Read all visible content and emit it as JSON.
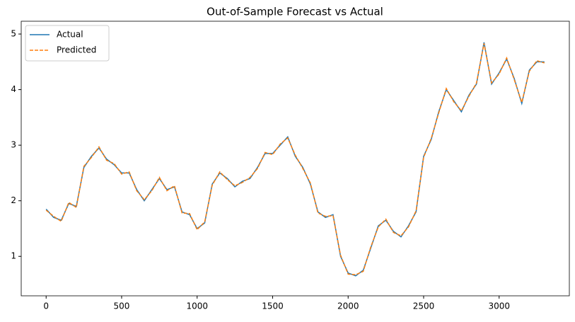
{
  "chart_data": {
    "type": "line",
    "title": "Out-of-Sample Forecast vs Actual",
    "x": [
      0,
      50,
      100,
      150,
      200,
      250,
      300,
      350,
      400,
      450,
      500,
      550,
      600,
      650,
      700,
      750,
      800,
      850,
      900,
      950,
      1000,
      1050,
      1100,
      1150,
      1200,
      1250,
      1300,
      1350,
      1400,
      1450,
      1500,
      1550,
      1600,
      1650,
      1700,
      1750,
      1800,
      1850,
      1900,
      1950,
      2000,
      2050,
      2100,
      2150,
      2200,
      2250,
      2300,
      2350,
      2400,
      2450,
      2500,
      2550,
      2600,
      2650,
      2700,
      2750,
      2800,
      2850,
      2900,
      2950,
      3000,
      3050,
      3100,
      3150,
      3200,
      3250,
      3300
    ],
    "series": [
      {
        "name": "Actual",
        "color": "#1f77b4",
        "dashed": false,
        "values": [
          1.85,
          1.7,
          1.65,
          1.95,
          1.9,
          2.6,
          2.8,
          2.95,
          2.75,
          2.65,
          2.5,
          2.5,
          2.2,
          2.0,
          2.2,
          2.4,
          2.2,
          2.25,
          1.8,
          1.75,
          1.5,
          1.6,
          2.3,
          2.5,
          2.4,
          2.25,
          2.35,
          2.4,
          2.6,
          2.85,
          2.85,
          3.0,
          3.15,
          2.8,
          2.6,
          2.3,
          1.8,
          1.7,
          1.75,
          1.0,
          0.7,
          0.65,
          0.75,
          1.15,
          1.55,
          1.65,
          1.45,
          1.35,
          1.55,
          1.8,
          2.8,
          3.1,
          3.6,
          4.0,
          3.8,
          3.6,
          3.9,
          4.1,
          4.85,
          4.1,
          4.3,
          4.55,
          4.2,
          3.75,
          4.35,
          4.5,
          4.5
        ]
      },
      {
        "name": "Predicted",
        "color": "#ff7f0e",
        "dashed": true,
        "values": [
          1.83,
          1.72,
          1.63,
          1.97,
          1.88,
          2.62,
          2.78,
          2.97,
          2.73,
          2.67,
          2.48,
          2.52,
          2.18,
          2.02,
          2.18,
          2.42,
          2.18,
          2.27,
          1.78,
          1.77,
          1.48,
          1.62,
          2.28,
          2.52,
          2.38,
          2.27,
          2.33,
          2.42,
          2.58,
          2.87,
          2.83,
          3.02,
          3.13,
          2.82,
          2.58,
          2.32,
          1.78,
          1.72,
          1.73,
          1.02,
          0.68,
          0.67,
          0.73,
          1.17,
          1.53,
          1.67,
          1.43,
          1.37,
          1.53,
          1.82,
          2.78,
          3.12,
          3.58,
          4.02,
          3.78,
          3.62,
          3.88,
          4.12,
          4.83,
          4.12,
          4.28,
          4.57,
          4.18,
          3.77,
          4.33,
          4.52,
          4.48
        ]
      }
    ],
    "xlim": [
      -165,
      3465
    ],
    "xticks": [
      0,
      500,
      1000,
      1500,
      2000,
      2500,
      3000
    ],
    "ylim": [
      0.29,
      5.23
    ],
    "yticks": [
      1,
      2,
      3,
      4,
      5
    ],
    "legend": "upper left"
  }
}
